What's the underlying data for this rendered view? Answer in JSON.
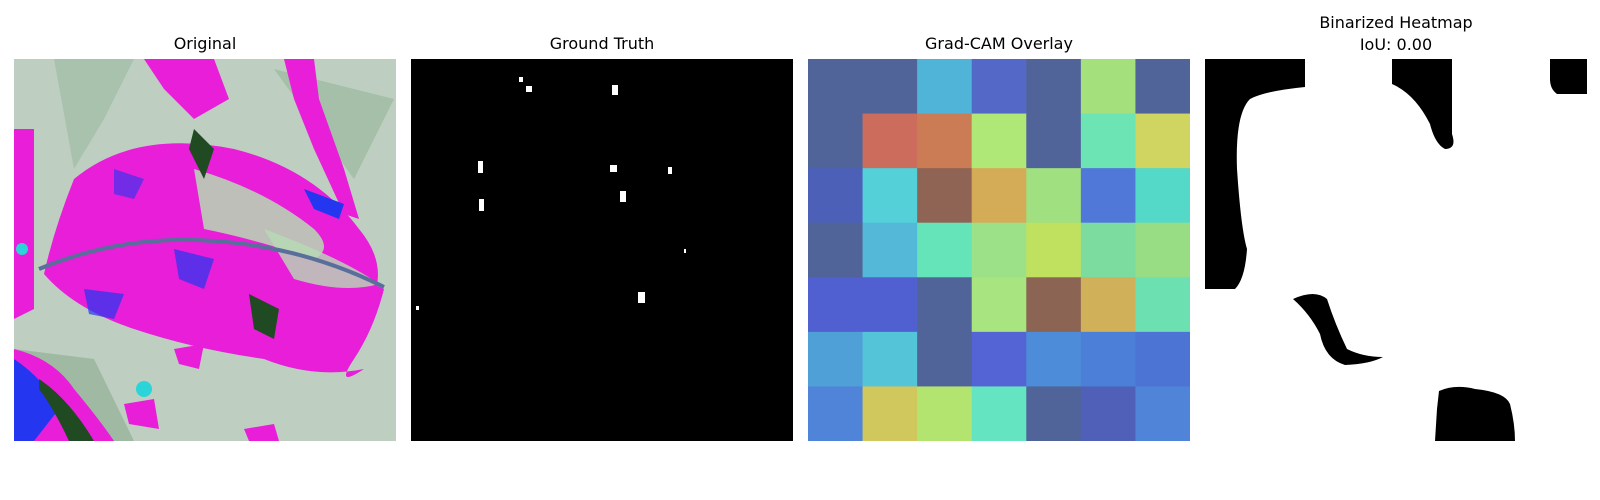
{
  "figure": {
    "panels": [
      {
        "id": "original",
        "title": "Original"
      },
      {
        "id": "ground-truth",
        "title": "Ground Truth"
      },
      {
        "id": "gradcam",
        "title": "Grad-CAM Overlay"
      },
      {
        "id": "binarized",
        "title": "Binarized Heatmap",
        "subtitle": "IoU: 0.00"
      }
    ]
  },
  "colors": {
    "leaf_magenta": "#e81ed8",
    "leaf_pale": "#b6dcb4",
    "background_gray": "#b9cbbd",
    "vein_blue": "#2436f0",
    "dark_green": "#1f4a22",
    "mask_white": "#ffffff",
    "mask_black": "#000000"
  },
  "gradcam_grid": [
    [
      "#50649a",
      "#50649a",
      "#50b4d8",
      "#5468c8",
      "#50649a",
      "#a4e07c",
      "#50649a"
    ],
    [
      "#50649a",
      "#cc6c5c",
      "#cc7c54",
      "#b0e878",
      "#50649a",
      "#6ce4b4",
      "#d0d460"
    ],
    [
      "#4c60b8",
      "#54d0d8",
      "#906454",
      "#d4ac58",
      "#a0e080",
      "#5078d8",
      "#54d8c8"
    ],
    [
      "#50649a",
      "#54b8d8",
      "#64e4b8",
      "#9ce088",
      "#c0e060",
      "#7cdca0",
      "#98dc84"
    ],
    [
      "#5060d0",
      "#5060d0",
      "#50649a",
      "#a8e480",
      "#8c6454",
      "#d0b058",
      "#6ce0b0"
    ],
    [
      "#50a0d8",
      "#54c4d8",
      "#50649a",
      "#5464d4",
      "#4c8cd8",
      "#4c80d8",
      "#4c74d4"
    ],
    [
      "#5084d8",
      "#d0c85c",
      "#b4e470",
      "#64e4c0",
      "#50649a",
      "#5060b8",
      "#5084d8"
    ]
  ]
}
